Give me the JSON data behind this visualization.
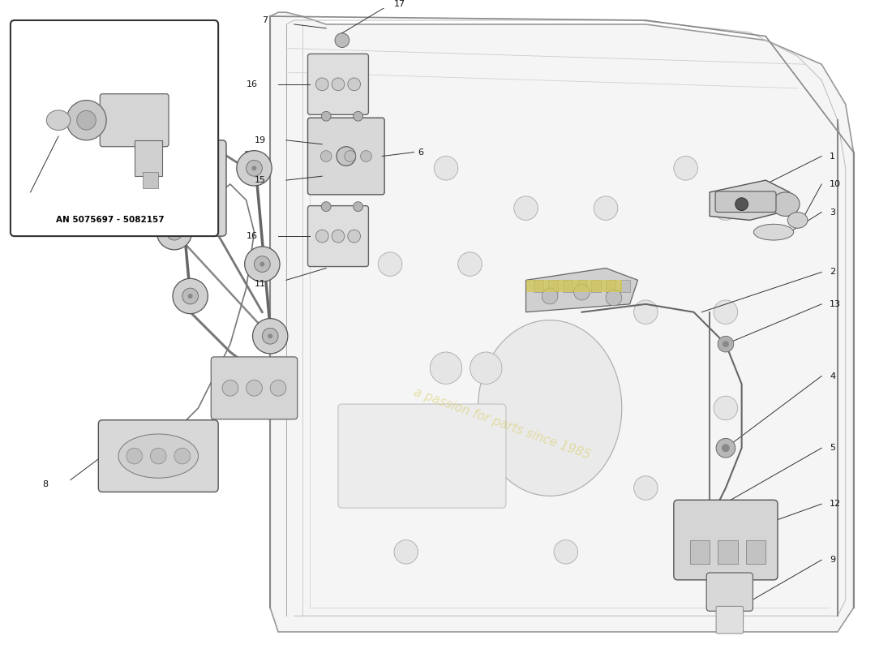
{
  "bg_color": "#ffffff",
  "inset_label": "AN 5075697 - 5082157",
  "watermark_text": "a passion for parts since 1985",
  "line_color": "#444444",
  "light_line": "#aaaaaa",
  "part_label_color": "#111111",
  "door_fill": "#f5f5f5",
  "door_edge": "#999999",
  "mech_fill": "#e8e8e8",
  "mech_edge": "#555555",
  "callout_color": "#333333",
  "inset_fill": "#ffffff",
  "inset_edge": "#333333",
  "watermark_color": "#d4c84a",
  "watermark_alpha": 0.45,
  "europarts_color": "#cccccc",
  "europarts_alpha": 0.25
}
